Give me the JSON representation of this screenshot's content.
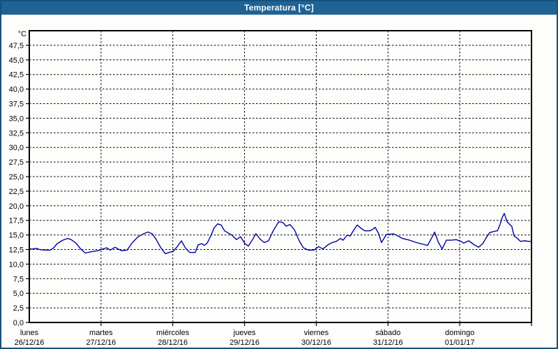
{
  "window": {
    "title": "Temperatura [°C]"
  },
  "colors": {
    "titlebar": "#1f6396",
    "window_border": "#17507c",
    "plot_background": "#fdfefc",
    "grid": "#000000",
    "series_line": "#0000a0",
    "title_text": "#ffffff"
  },
  "chart_data": {
    "type": "line",
    "title": "Temperatura [°C]",
    "ylabel": "°C",
    "unit_label": "°C",
    "y_min": 0,
    "y_max": 50,
    "y_tick_step": 2.5,
    "y_tick_labels_top_to_bottom": [
      "47,5",
      "45,0",
      "42,5",
      "40,0",
      "37,5",
      "35,0",
      "32,5",
      "30,0",
      "27,5",
      "25,0",
      "22,5",
      "20,0",
      "17,5",
      "15,0",
      "12,5",
      "10,0",
      "7,5",
      "5,0",
      "2,5",
      "0,0"
    ],
    "x_range_hours": 168,
    "grid": "dashed",
    "legend_position": "none",
    "days": [
      {
        "name": "lunes",
        "date": "26/12/16"
      },
      {
        "name": "martes",
        "date": "27/12/16"
      },
      {
        "name": "miércoles",
        "date": "28/12/16"
      },
      {
        "name": "jueves",
        "date": "29/12/16"
      },
      {
        "name": "viernes",
        "date": "30/12/16"
      },
      {
        "name": "sábado",
        "date": "31/12/16"
      },
      {
        "name": "domingo",
        "date": "01/01/17"
      }
    ],
    "series": [
      {
        "name": "Temperatura",
        "color": "#0000a0",
        "points_hours_degc": [
          [
            0,
            12.6
          ],
          [
            1,
            12.6
          ],
          [
            2.3,
            12.7
          ],
          [
            3.5,
            12.5
          ],
          [
            5.1,
            12.4
          ],
          [
            7,
            12.4
          ],
          [
            8.2,
            12.8
          ],
          [
            9.3,
            13.5
          ],
          [
            11.2,
            14.1
          ],
          [
            12.8,
            14.4
          ],
          [
            14,
            14.2
          ],
          [
            15.6,
            13.6
          ],
          [
            17,
            12.7
          ],
          [
            18.7,
            11.9
          ],
          [
            20.5,
            12.1
          ],
          [
            22.9,
            12.3
          ],
          [
            24,
            12.5
          ],
          [
            25.9,
            12.8
          ],
          [
            27.1,
            12.4
          ],
          [
            28.7,
            12.9
          ],
          [
            30.8,
            12.3
          ],
          [
            32.7,
            12.4
          ],
          [
            34.5,
            13.7
          ],
          [
            36.4,
            14.7
          ],
          [
            38.3,
            15.2
          ],
          [
            39.7,
            15.5
          ],
          [
            41.1,
            15.2
          ],
          [
            42.5,
            14.2
          ],
          [
            43.9,
            12.9
          ],
          [
            45.5,
            11.8
          ],
          [
            47.4,
            12.1
          ],
          [
            48,
            12.1
          ],
          [
            49.5,
            13.0
          ],
          [
            50.9,
            14.0
          ],
          [
            52.3,
            12.7
          ],
          [
            53.7,
            12.0
          ],
          [
            55.5,
            12.0
          ],
          [
            56.5,
            13.3
          ],
          [
            57.7,
            13.5
          ],
          [
            58.6,
            13.2
          ],
          [
            59.5,
            13.6
          ],
          [
            60.7,
            14.8
          ],
          [
            61.8,
            16.2
          ],
          [
            63,
            16.9
          ],
          [
            64.2,
            16.7
          ],
          [
            65.3,
            15.7
          ],
          [
            67.7,
            15.0
          ],
          [
            69.3,
            14.2
          ],
          [
            70.7,
            14.7
          ],
          [
            72.1,
            13.5
          ],
          [
            73.3,
            13.1
          ],
          [
            74.7,
            14.2
          ],
          [
            75.8,
            15.2
          ],
          [
            77.2,
            14.3
          ],
          [
            78.6,
            13.7
          ],
          [
            80,
            14.0
          ],
          [
            81.7,
            15.8
          ],
          [
            83.5,
            17.3
          ],
          [
            84.9,
            17.1
          ],
          [
            85.9,
            16.5
          ],
          [
            87.2,
            16.8
          ],
          [
            88.7,
            15.9
          ],
          [
            90.3,
            14.0
          ],
          [
            91.7,
            12.8
          ],
          [
            93.3,
            12.4
          ],
          [
            95.2,
            12.4
          ],
          [
            96.8,
            13.0
          ],
          [
            98.2,
            12.6
          ],
          [
            99.9,
            13.3
          ],
          [
            101.3,
            13.7
          ],
          [
            102.7,
            13.9
          ],
          [
            104.1,
            14.4
          ],
          [
            105,
            14.1
          ],
          [
            106.4,
            15.0
          ],
          [
            107.3,
            14.8
          ],
          [
            108.5,
            15.8
          ],
          [
            109.7,
            16.7
          ],
          [
            111.1,
            16.1
          ],
          [
            112.2,
            15.7
          ],
          [
            113.9,
            15.7
          ],
          [
            115,
            16.0
          ],
          [
            115.7,
            16.3
          ],
          [
            116.9,
            15.2
          ],
          [
            117.8,
            13.7
          ],
          [
            119.5,
            15.1
          ],
          [
            120.3,
            15.1
          ],
          [
            121.7,
            15.2
          ],
          [
            122.7,
            15.0
          ],
          [
            124.8,
            14.4
          ],
          [
            127.2,
            14.1
          ],
          [
            129.5,
            13.7
          ],
          [
            131.8,
            13.4
          ],
          [
            133.2,
            13.2
          ],
          [
            134.6,
            14.5
          ],
          [
            135.6,
            15.5
          ],
          [
            136.8,
            13.8
          ],
          [
            138.1,
            12.6
          ],
          [
            139.5,
            14.1
          ],
          [
            141.2,
            14.1
          ],
          [
            142.8,
            14.2
          ],
          [
            144.4,
            13.9
          ],
          [
            145.3,
            13.6
          ],
          [
            147,
            14.0
          ],
          [
            148.6,
            13.4
          ],
          [
            150.3,
            12.9
          ],
          [
            151.7,
            13.5
          ],
          [
            152.8,
            14.5
          ],
          [
            154,
            15.4
          ],
          [
            155.4,
            15.6
          ],
          [
            156.6,
            15.7
          ],
          [
            157.5,
            16.8
          ],
          [
            158.2,
            18.0
          ],
          [
            158.9,
            18.7
          ],
          [
            159.8,
            17.3
          ],
          [
            160.7,
            16.8
          ],
          [
            161.4,
            16.5
          ],
          [
            162.2,
            14.8
          ],
          [
            163.3,
            14.4
          ],
          [
            164.3,
            13.9
          ],
          [
            165.7,
            14.0
          ],
          [
            167.1,
            13.9
          ],
          [
            168,
            13.9
          ]
        ]
      }
    ]
  }
}
